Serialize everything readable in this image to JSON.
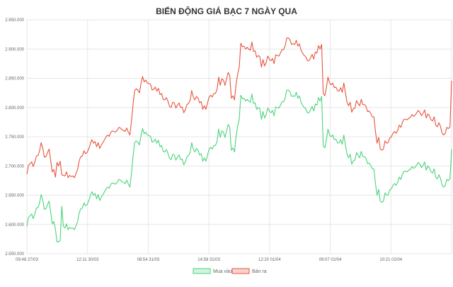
{
  "chart_data": {
    "type": "line",
    "title": "BIẾN ĐỘNG GIÁ BẠC 7 NGÀY QUA",
    "xlabel": "",
    "ylabel": "",
    "ylim": [
      2550000,
      2950000
    ],
    "y_ticks": [
      "2.550.000",
      "2.600.000",
      "2.650.000",
      "2.700.000",
      "2.750.000",
      "2.800.000",
      "2.850.000",
      "2.900.000",
      "2.950.000"
    ],
    "x_ticks": [
      "09:48 27/03",
      "12:11 30/03",
      "08:54 31/03",
      "14:58 31/03",
      "12:20 01/04",
      "09:07 02/04",
      "10:21 02/04"
    ],
    "grid": true,
    "legend_position": "bottom",
    "series": [
      {
        "name": "Mua vào",
        "color": "#4bd37c",
        "values": [
          2597000,
          2612000,
          2615000,
          2618000,
          2610000,
          2618000,
          2628000,
          2629000,
          2637000,
          2651000,
          2642000,
          2626000,
          2627000,
          2634000,
          2640000,
          2621000,
          2601000,
          2605000,
          2592000,
          2570000,
          2571000,
          2572000,
          2631000,
          2597000,
          2594000,
          2601000,
          2591000,
          2595000,
          2593000,
          2594000,
          2591000,
          2598000,
          2605000,
          2620000,
          2627000,
          2628000,
          2637000,
          2632000,
          2634000,
          2640000,
          2649000,
          2656000,
          2650000,
          2653000,
          2644000,
          2651000,
          2641000,
          2647000,
          2651000,
          2656000,
          2661000,
          2664000,
          2662000,
          2669000,
          2671000,
          2670000,
          2669000,
          2672000,
          2677000,
          2676000,
          2673000,
          2672000,
          2670000,
          2676000,
          2669000,
          2664000,
          2688000,
          2717000,
          2740000,
          2743000,
          2741000,
          2736000,
          2752000,
          2764000,
          2755000,
          2758000,
          2753000,
          2752000,
          2751000,
          2741000,
          2742000,
          2746000,
          2739000,
          2744000,
          2733000,
          2735000,
          2725000,
          2724000,
          2728000,
          2722000,
          2713000,
          2711000,
          2720000,
          2719000,
          2710000,
          2715000,
          2719000,
          2711000,
          2712000,
          2702000,
          2707000,
          2716000,
          2718000,
          2723000,
          2740000,
          2729000,
          2724000,
          2730000,
          2727000,
          2719000,
          2721000,
          2708000,
          2714000,
          2708000,
          2719000,
          2729000,
          2732000,
          2729000,
          2735000,
          2735000,
          2742000,
          2763000,
          2749000,
          2760000,
          2758000,
          2749000,
          2760000,
          2771000,
          2766000,
          2727000,
          2731000,
          2724000,
          2751000,
          2768000,
          2780000,
          2821000,
          2815000,
          2816000,
          2811000,
          2814000,
          2811000,
          2809000,
          2823000,
          2807000,
          2808000,
          2797000,
          2800000,
          2798000,
          2780000,
          2793000,
          2782000,
          2788000,
          2799000,
          2794000,
          2791000,
          2795000,
          2786000,
          2801000,
          2800000,
          2799000,
          2804000,
          2810000,
          2810000,
          2817000,
          2830000,
          2830000,
          2827000,
          2819000,
          2820000,
          2819000,
          2826000,
          2816000,
          2820000,
          2809000,
          2804000,
          2800000,
          2798000,
          2791000,
          2791000,
          2796000,
          2802000,
          2794000,
          2806000,
          2804000,
          2817000,
          2811000,
          2819000,
          2735000,
          2731000,
          2745000,
          2763000,
          2753000,
          2750000,
          2753000,
          2745000,
          2746000,
          2740000,
          2739000,
          2745000,
          2737000,
          2753000,
          2736000,
          2720000,
          2714000,
          2720000,
          2703000,
          2709000,
          2710000,
          2723000,
          2718000,
          2714000,
          2725000,
          2716000,
          2716000,
          2713000,
          2704000,
          2705000,
          2701000,
          2695000,
          2695000,
          2669000,
          2650000,
          2660000,
          2640000,
          2638000,
          2640000,
          2654000,
          2650000,
          2651000,
          2659000,
          2661000,
          2667000,
          2670000,
          2667000,
          2672000,
          2681000,
          2677000,
          2686000,
          2691000,
          2691000,
          2690000,
          2693000,
          2694000,
          2699000,
          2696000,
          2698000,
          2702000,
          2706000,
          2703000,
          2697000,
          2701000,
          2707000,
          2693000,
          2700000,
          2697000,
          2690000,
          2688000,
          2695000,
          2681000,
          2678000,
          2685000,
          2679000,
          2667000,
          2664000,
          2667000,
          2677000,
          2675000,
          2678000,
          2729000
        ]
      },
      {
        "name": "Bán ra",
        "color": "#e8543c",
        "values": [
          2686000,
          2701000,
          2704000,
          2707000,
          2699000,
          2707000,
          2717000,
          2718000,
          2726000,
          2740000,
          2731000,
          2715000,
          2716000,
          2723000,
          2729000,
          2710000,
          2690000,
          2694000,
          2681000,
          2706000,
          2700000,
          2708000,
          2685000,
          2684000,
          2683000,
          2690000,
          2680000,
          2684000,
          2682000,
          2683000,
          2680000,
          2687000,
          2694000,
          2709000,
          2716000,
          2717000,
          2726000,
          2721000,
          2723000,
          2729000,
          2738000,
          2745000,
          2739000,
          2742000,
          2733000,
          2740000,
          2730000,
          2736000,
          2740000,
          2745000,
          2750000,
          2753000,
          2751000,
          2758000,
          2760000,
          2759000,
          2758000,
          2761000,
          2766000,
          2765000,
          2762000,
          2761000,
          2759000,
          2765000,
          2758000,
          2753000,
          2777000,
          2806000,
          2829000,
          2832000,
          2830000,
          2825000,
          2841000,
          2853000,
          2844000,
          2847000,
          2842000,
          2841000,
          2840000,
          2830000,
          2831000,
          2835000,
          2828000,
          2833000,
          2822000,
          2824000,
          2814000,
          2813000,
          2817000,
          2811000,
          2802000,
          2800000,
          2809000,
          2808000,
          2799000,
          2804000,
          2808000,
          2800000,
          2801000,
          2791000,
          2796000,
          2805000,
          2807000,
          2812000,
          2829000,
          2818000,
          2813000,
          2819000,
          2816000,
          2808000,
          2810000,
          2797000,
          2803000,
          2797000,
          2808000,
          2818000,
          2821000,
          2818000,
          2824000,
          2824000,
          2831000,
          2852000,
          2838000,
          2849000,
          2847000,
          2838000,
          2849000,
          2860000,
          2855000,
          2816000,
          2820000,
          2813000,
          2840000,
          2857000,
          2869000,
          2910000,
          2904000,
          2905000,
          2900000,
          2903000,
          2900000,
          2898000,
          2912000,
          2896000,
          2897000,
          2886000,
          2889000,
          2887000,
          2869000,
          2882000,
          2871000,
          2877000,
          2888000,
          2883000,
          2880000,
          2884000,
          2875000,
          2890000,
          2889000,
          2888000,
          2893000,
          2899000,
          2899000,
          2906000,
          2919000,
          2919000,
          2916000,
          2908000,
          2909000,
          2908000,
          2915000,
          2905000,
          2909000,
          2898000,
          2893000,
          2889000,
          2887000,
          2880000,
          2880000,
          2885000,
          2891000,
          2883000,
          2895000,
          2893000,
          2906000,
          2900000,
          2908000,
          2824000,
          2820000,
          2834000,
          2852000,
          2842000,
          2839000,
          2842000,
          2834000,
          2835000,
          2829000,
          2828000,
          2834000,
          2826000,
          2842000,
          2825000,
          2809000,
          2803000,
          2809000,
          2792000,
          2798000,
          2799000,
          2812000,
          2807000,
          2803000,
          2814000,
          2805000,
          2805000,
          2802000,
          2793000,
          2794000,
          2790000,
          2784000,
          2784000,
          2758000,
          2739000,
          2749000,
          2729000,
          2727000,
          2729000,
          2743000,
          2739000,
          2740000,
          2748000,
          2750000,
          2756000,
          2759000,
          2756000,
          2761000,
          2770000,
          2766000,
          2775000,
          2780000,
          2780000,
          2779000,
          2782000,
          2783000,
          2788000,
          2785000,
          2787000,
          2791000,
          2795000,
          2792000,
          2786000,
          2790000,
          2796000,
          2782000,
          2789000,
          2786000,
          2779000,
          2777000,
          2784000,
          2770000,
          2767000,
          2774000,
          2768000,
          2756000,
          2753000,
          2756000,
          2766000,
          2764000,
          2767000,
          2846000
        ]
      }
    ]
  }
}
